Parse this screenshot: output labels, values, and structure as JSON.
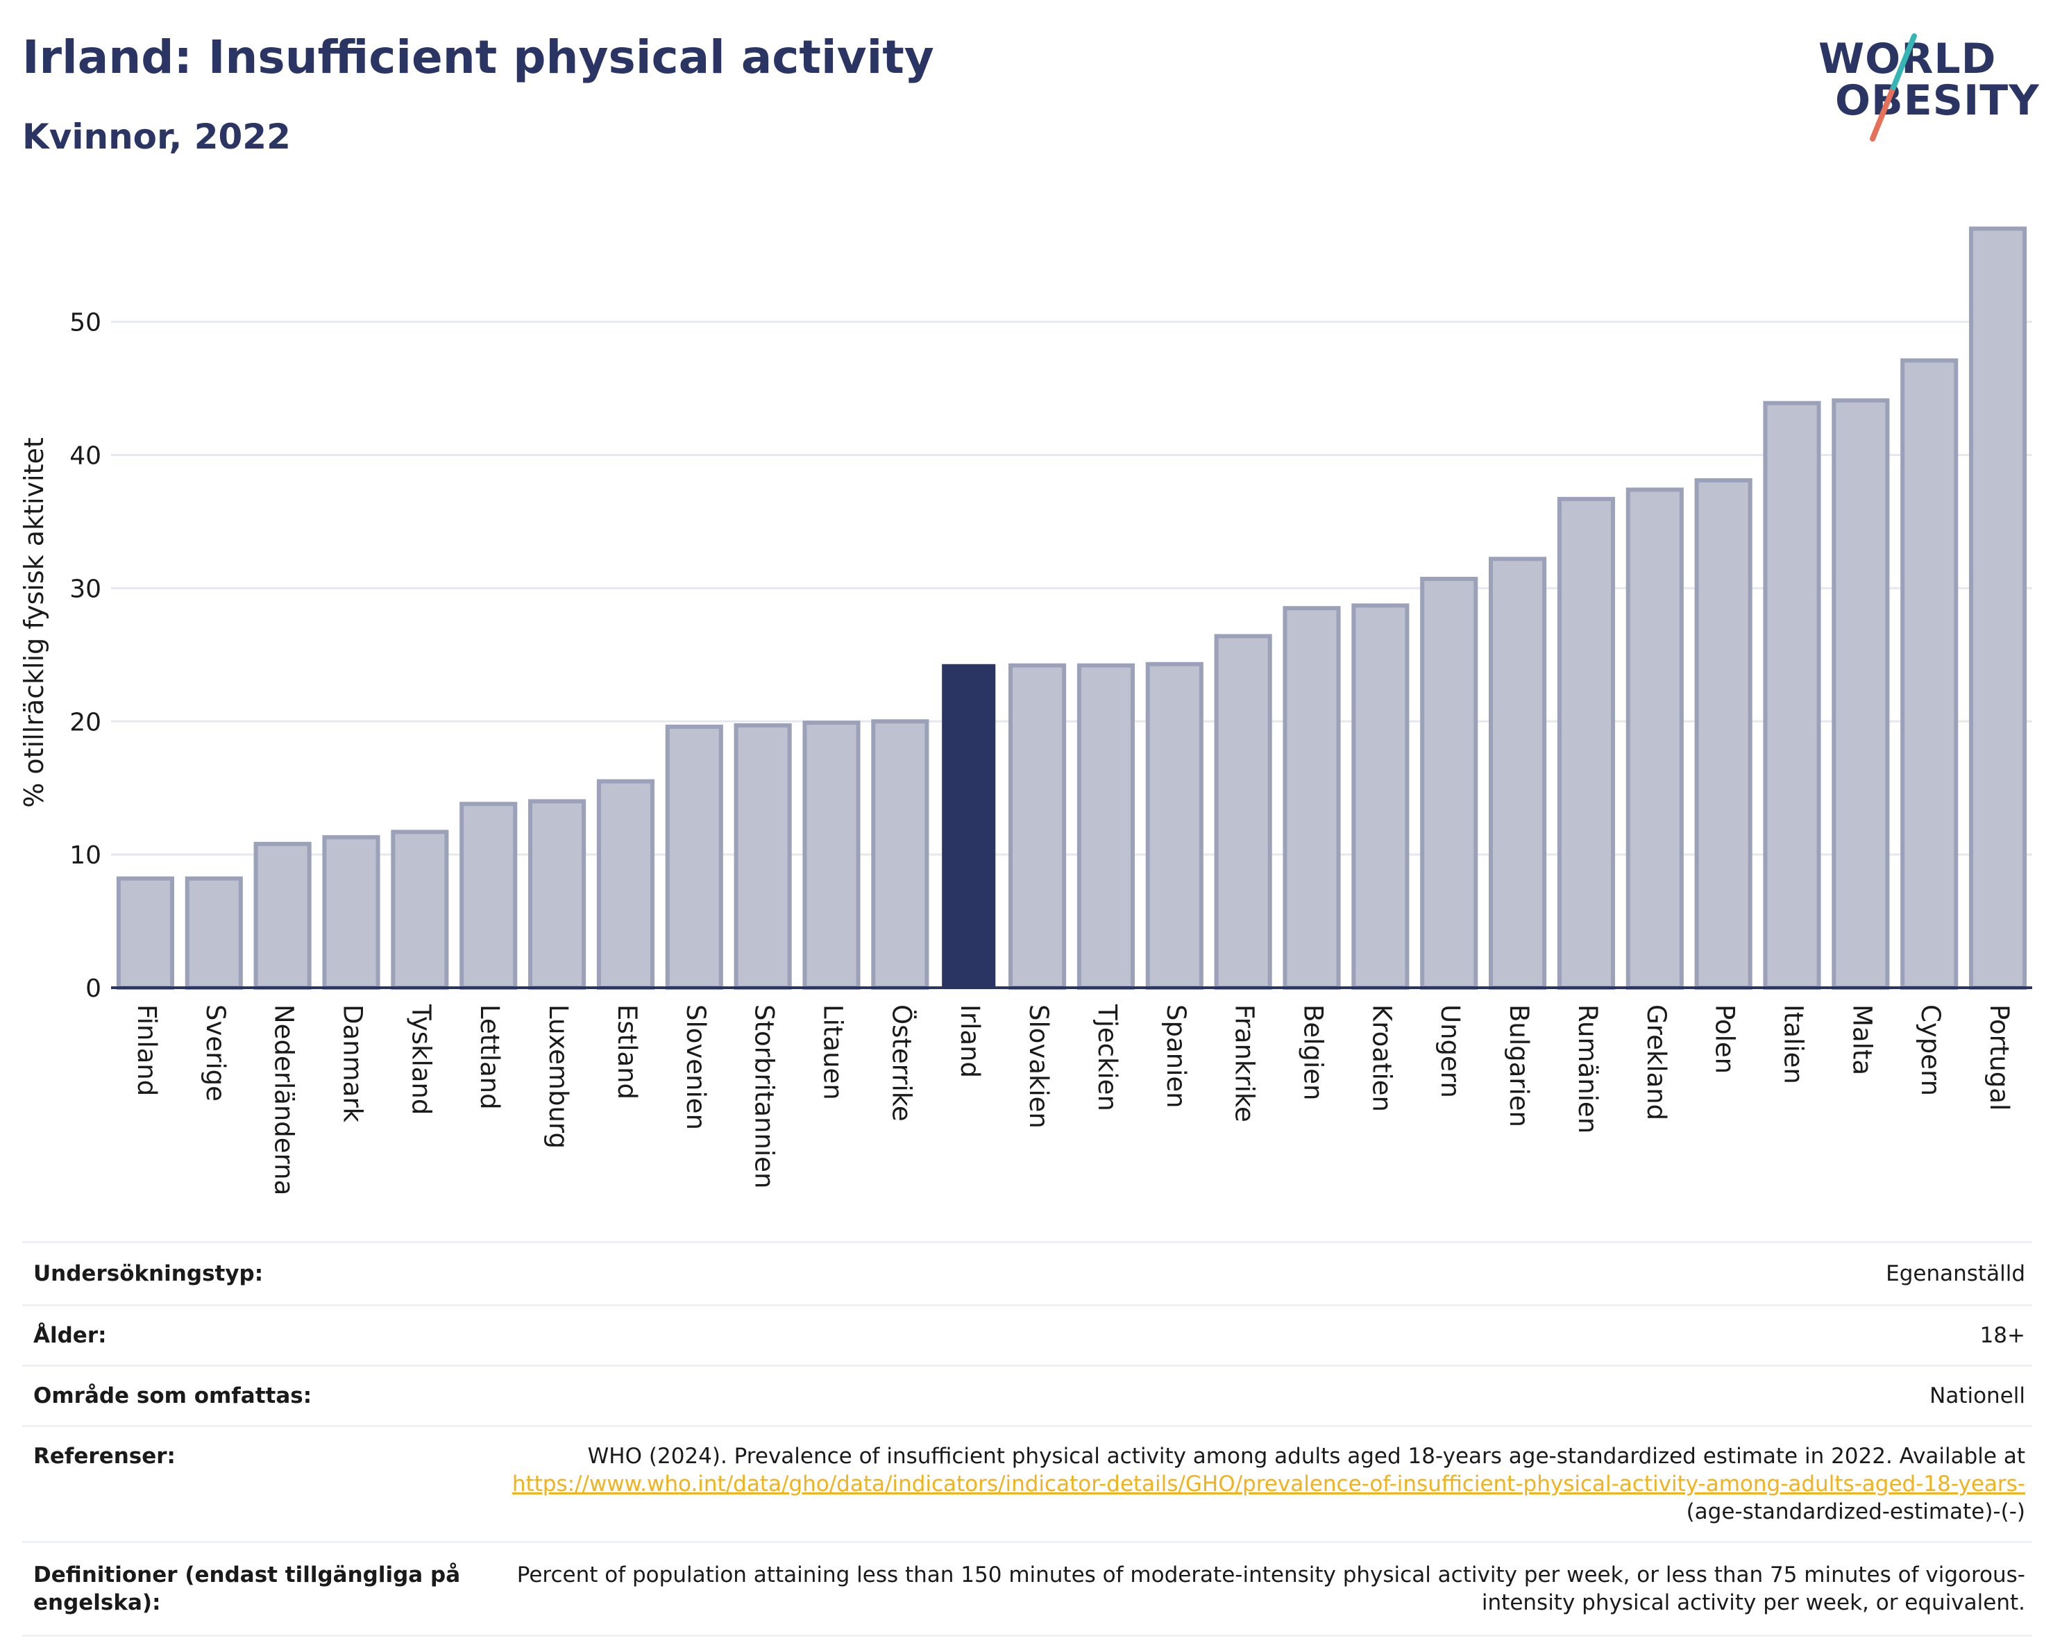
{
  "page": {
    "title": "Irland: Insufficient physical activity",
    "subtitle": "Kvinnor, 2022"
  },
  "logo": {
    "line1": "WORLD",
    "line2": "OBESITY",
    "colors": {
      "text": "#2b3563",
      "slash_top": "#35b6b4",
      "slash_bottom": "#e6705a"
    }
  },
  "colors": {
    "bar": "#2b3563",
    "bar_other_fill": "#bec2d0",
    "bar_other_stroke": "#9aa1b8",
    "grid": "#e6e8ef",
    "axis": "#2b3563",
    "link": "#f2b21a"
  },
  "chart_data": {
    "type": "bar",
    "ylabel": "% otillräcklig fysisk aktivitet",
    "ylim": [
      0,
      59
    ],
    "yticks": [
      0,
      10,
      20,
      30,
      40,
      50
    ],
    "grid": true,
    "highlight": "Irland",
    "categories": [
      "Finland",
      "Sverige",
      "Nederländerna",
      "Danmark",
      "Tyskland",
      "Lettland",
      "Luxemburg",
      "Estland",
      "Slovenien",
      "Storbritannien",
      "Litauen",
      "Österrike",
      "Irland",
      "Slovakien",
      "Tjeckien",
      "Spanien",
      "Frankrike",
      "Belgien",
      "Kroatien",
      "Ungern",
      "Bulgarien",
      "Rumänien",
      "Grekland",
      "Polen",
      "Italien",
      "Malta",
      "Cypern",
      "Portugal"
    ],
    "values": [
      8.2,
      8.2,
      10.8,
      11.3,
      11.7,
      13.8,
      14.0,
      15.5,
      19.6,
      19.7,
      19.9,
      20.0,
      24.3,
      24.2,
      24.2,
      24.3,
      26.4,
      28.5,
      28.7,
      30.7,
      32.2,
      36.7,
      37.4,
      38.1,
      43.9,
      44.1,
      47.1,
      57.0
    ]
  },
  "meta": {
    "rows": [
      {
        "label": "Undersökningstyp:",
        "value": "Egenanställd"
      },
      {
        "label": "Ålder:",
        "value": "18+"
      },
      {
        "label": "Område som omfattas:",
        "value": "Nationell"
      }
    ],
    "references_label": "Referenser:",
    "references_text": "WHO (2024). Prevalence of insufficient physical activity among adults aged 18-years age-standardized estimate in 2022. Available at",
    "references_link": "https://www.who.int/data/gho/data/indicators/indicator-details/GHO/prevalence-of-insufficient-physical-activity-among-adults-aged-18-years-",
    "references_suffix": "(age-standardized-estimate)-(-)",
    "definitions_label": "Definitioner (endast tillgängliga på engelska):",
    "definitions_text": "Percent of population attaining less than 150 minutes of moderate-intensity physical activity per week, or less than 75 minutes of vigorous-intensity physical activity per week, or equivalent."
  }
}
